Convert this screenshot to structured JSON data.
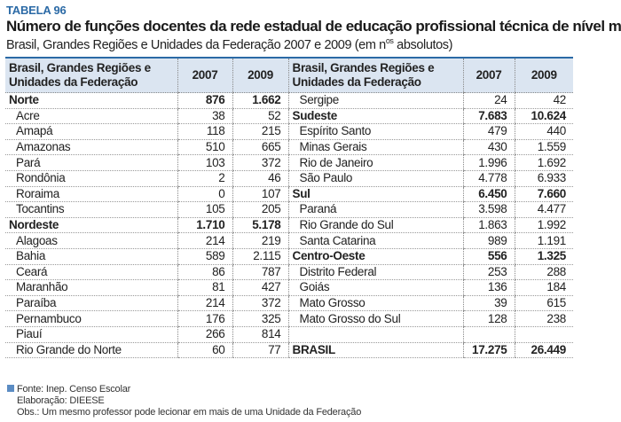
{
  "table_label": "TABELA 96",
  "title": "Número de funções docentes da rede estadual de educação profissional técnica de nível médio",
  "subtitle_pre": "Brasil, Grandes Regiões e Unidades da Federação 2007 e 2009 (em n",
  "subtitle_sup": "os",
  "subtitle_post": " absolutos)",
  "headers": {
    "name_line1": "Brasil, Grandes Regiões e",
    "name_line2": "Unidades da Federação",
    "y2007": "2007",
    "y2009": "2009"
  },
  "left_rows": [
    {
      "name": "Norte",
      "v2007": "876",
      "v2009": "1.662",
      "region": true
    },
    {
      "name": "Acre",
      "v2007": "38",
      "v2009": "52"
    },
    {
      "name": "Amapá",
      "v2007": "118",
      "v2009": "215"
    },
    {
      "name": "Amazonas",
      "v2007": "510",
      "v2009": "665"
    },
    {
      "name": "Pará",
      "v2007": "103",
      "v2009": "372"
    },
    {
      "name": "Rondônia",
      "v2007": "2",
      "v2009": "46"
    },
    {
      "name": "Roraima",
      "v2007": "0",
      "v2009": "107"
    },
    {
      "name": "Tocantins",
      "v2007": "105",
      "v2009": "205"
    },
    {
      "name": "Nordeste",
      "v2007": "1.710",
      "v2009": "5.178",
      "region": true
    },
    {
      "name": "Alagoas",
      "v2007": "214",
      "v2009": "219"
    },
    {
      "name": "Bahia",
      "v2007": "589",
      "v2009": "2.115"
    },
    {
      "name": "Ceará",
      "v2007": "86",
      "v2009": "787"
    },
    {
      "name": "Maranhão",
      "v2007": "81",
      "v2009": "427"
    },
    {
      "name": "Paraíba",
      "v2007": "214",
      "v2009": "372"
    },
    {
      "name": "Pernambuco",
      "v2007": "176",
      "v2009": "325"
    },
    {
      "name": "Piauí",
      "v2007": "266",
      "v2009": "814"
    },
    {
      "name": "Rio Grande do Norte",
      "v2007": "60",
      "v2009": "77"
    }
  ],
  "right_rows": [
    {
      "name": "Sergipe",
      "v2007": "24",
      "v2009": "42"
    },
    {
      "name": "Sudeste",
      "v2007": "7.683",
      "v2009": "10.624",
      "region": true
    },
    {
      "name": "Espírito Santo",
      "v2007": "479",
      "v2009": "440"
    },
    {
      "name": "Minas Gerais",
      "v2007": "430",
      "v2009": "1.559"
    },
    {
      "name": "Rio de Janeiro",
      "v2007": "1.996",
      "v2009": "1.692"
    },
    {
      "name": "São Paulo",
      "v2007": "4.778",
      "v2009": "6.933"
    },
    {
      "name": "Sul",
      "v2007": "6.450",
      "v2009": "7.660",
      "region": true
    },
    {
      "name": "Paraná",
      "v2007": "3.598",
      "v2009": "4.477"
    },
    {
      "name": "Rio Grande do Sul",
      "v2007": "1.863",
      "v2009": "1.992"
    },
    {
      "name": "Santa Catarina",
      "v2007": "989",
      "v2009": "1.191"
    },
    {
      "name": "Centro-Oeste",
      "v2007": "556",
      "v2009": "1.325",
      "region": true
    },
    {
      "name": "Distrito Federal",
      "v2007": "253",
      "v2009": "288"
    },
    {
      "name": "Goiás",
      "v2007": "136",
      "v2009": "184"
    },
    {
      "name": "Mato Grosso",
      "v2007": "39",
      "v2009": "615"
    },
    {
      "name": "Mato Grosso do Sul",
      "v2007": "128",
      "v2009": "238"
    },
    {
      "name": "",
      "v2007": "",
      "v2009": ""
    },
    {
      "name": "BRASIL",
      "v2007": "17.275",
      "v2009": "26.449",
      "region": true
    }
  ],
  "footer": {
    "source": "Fonte: Inep. Censo Escolar",
    "elaboration": "Elaboração: DIEESE",
    "note": "Obs.: Um mesmo professor pode lecionar em mais de uma Unidade da Federação"
  },
  "colors": {
    "accent": "#2b6aa6",
    "header_bg": "#dbe5f1"
  }
}
